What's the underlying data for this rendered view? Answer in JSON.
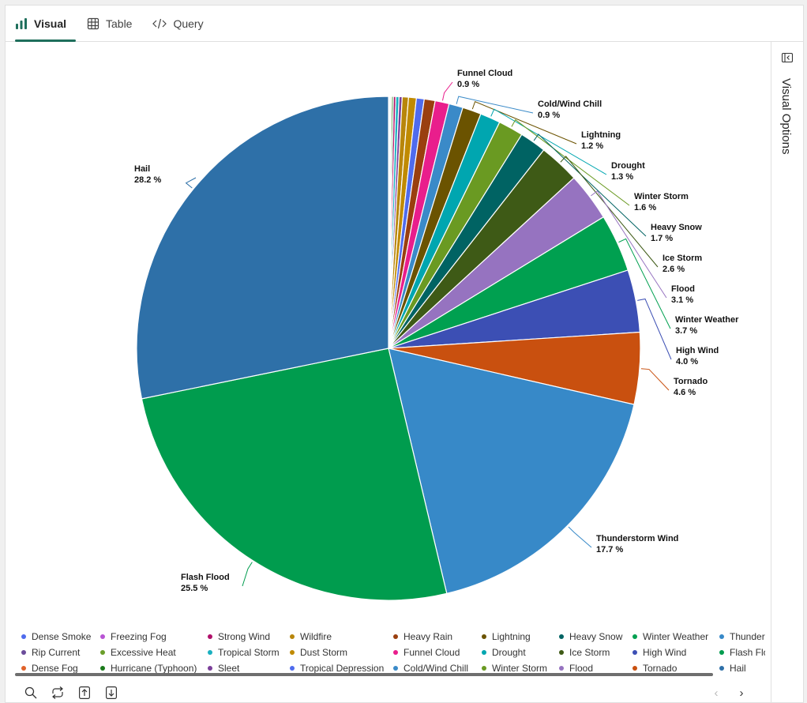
{
  "tabs": [
    {
      "label": "Visual",
      "icon": "bar-chart-icon",
      "active": true
    },
    {
      "label": "Table",
      "icon": "table-icon",
      "active": false
    },
    {
      "label": "Query",
      "icon": "code-icon",
      "active": false
    }
  ],
  "side_panel": {
    "label": "Visual Options",
    "icon": "collapse-panel-icon"
  },
  "toolbar": {
    "icons": [
      "search-icon",
      "refresh-icon",
      "export-up-icon",
      "download-icon"
    ],
    "nav": [
      "previous-icon",
      "next-icon"
    ]
  },
  "chart_data": {
    "type": "pie",
    "start": "12 o'clock, clockwise, ascending",
    "legend_placement": "bottom",
    "slices": [
      {
        "name": "Dense Smoke",
        "value": 0.02,
        "color": "#4f6bed"
      },
      {
        "name": "Rip Current",
        "value": 0.03,
        "color": "#6b4c9a"
      },
      {
        "name": "Dense Fog",
        "value": 0.04,
        "color": "#e0622a"
      },
      {
        "name": "Freezing Fog",
        "value": 0.05,
        "color": "#b854d4"
      },
      {
        "name": "Excessive Heat",
        "value": 0.08,
        "color": "#6a9e2a"
      },
      {
        "name": "Hurricane (Typhoon)",
        "value": 0.1,
        "color": "#1a7a1a"
      },
      {
        "name": "Strong Wind",
        "value": 0.15,
        "color": "#b0106a"
      },
      {
        "name": "Tropical Storm",
        "value": 0.2,
        "color": "#1ab0c0"
      },
      {
        "name": "Sleet",
        "value": 0.2,
        "color": "#7b3f9a"
      },
      {
        "name": "Wildfire",
        "value": 0.4,
        "color": "#b8860b"
      },
      {
        "name": "Dust Storm",
        "value": 0.5,
        "color": "#c08a00"
      },
      {
        "name": "Tropical Depression",
        "value": 0.5,
        "color": "#4f6bed"
      },
      {
        "name": "Heavy Rain",
        "value": 0.7,
        "color": "#9a3f0f"
      },
      {
        "name": "Funnel Cloud",
        "value": 0.9,
        "label": "0.9 %",
        "color": "#e91e8c"
      },
      {
        "name": "Cold/Wind Chill",
        "value": 0.9,
        "label": "0.9 %",
        "color": "#3a8ac8"
      },
      {
        "name": "Lightning",
        "value": 1.2,
        "label": "1.2 %",
        "color": "#6b5300"
      },
      {
        "name": "Drought",
        "value": 1.3,
        "label": "1.3 %",
        "color": "#00a6b0"
      },
      {
        "name": "Winter Storm",
        "value": 1.6,
        "label": "1.6 %",
        "color": "#6a9a22"
      },
      {
        "name": "Heavy Snow",
        "value": 1.7,
        "label": "1.7 %",
        "color": "#006363"
      },
      {
        "name": "Ice Storm",
        "value": 2.6,
        "label": "2.6 %",
        "color": "#3e5a16"
      },
      {
        "name": "Flood",
        "value": 3.1,
        "label": "3.1 %",
        "color": "#9673c0"
      },
      {
        "name": "Winter Weather",
        "value": 3.7,
        "label": "3.7 %",
        "color": "#00a050"
      },
      {
        "name": "High Wind",
        "value": 4.0,
        "label": "4.0 %",
        "color": "#3c4fb4"
      },
      {
        "name": "Tornado",
        "value": 4.6,
        "label": "4.6 %",
        "color": "#c9500f"
      },
      {
        "name": "Thunderstorm Wind",
        "value": 17.7,
        "label": "17.7 %",
        "color": "#3789c8"
      },
      {
        "name": "Flash Flood",
        "value": 25.5,
        "label": "25.5 %",
        "color": "#009c4e"
      },
      {
        "name": "Hail",
        "value": 28.2,
        "label": "28.2 %",
        "color": "#2e70a8"
      }
    ]
  }
}
